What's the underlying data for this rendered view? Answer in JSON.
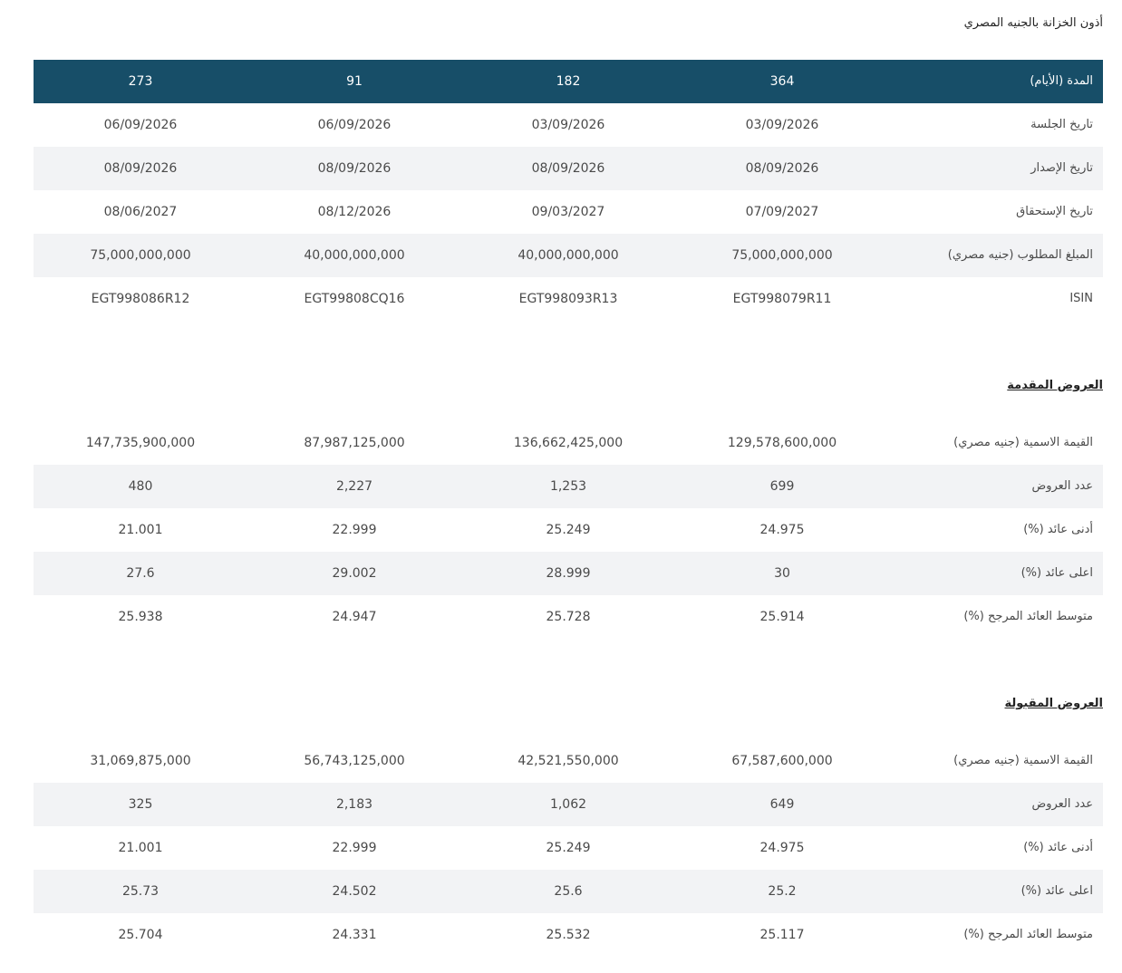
{
  "title": "أذون الخزانة بالجنيه المصري",
  "main_table": {
    "header": [
      "المدة (الأيام)",
      "364",
      "182",
      "91",
      "273"
    ],
    "rows": [
      [
        "تاريخ الجلسة",
        "03/09/2026",
        "03/09/2026",
        "06/09/2026",
        "06/09/2026"
      ],
      [
        "تاريخ الإصدار",
        "08/09/2026",
        "08/09/2026",
        "08/09/2026",
        "08/09/2026"
      ],
      [
        "تاريخ الإستحقاق",
        "07/09/2027",
        "09/03/2027",
        "08/12/2026",
        "08/06/2027"
      ],
      [
        "المبلغ المطلوب (جنيه مصري)",
        "75,000,000,000",
        "40,000,000,000",
        "40,000,000,000",
        "75,000,000,000"
      ],
      [
        "ISIN",
        "EGT998079R11",
        "EGT998093R13",
        "EGT99808CQ16",
        "EGT998086R12"
      ]
    ]
  },
  "offered": {
    "title": "العروض المقدمة",
    "rows": [
      [
        "القيمة الاسمية (جنيه مصري)",
        "129,578,600,000",
        "136,662,425,000",
        "87,987,125,000",
        "147,735,900,000"
      ],
      [
        "عدد العروض",
        "699",
        "1,253",
        "2,227",
        "480"
      ],
      [
        "أدنى عائد (%)",
        "24.975",
        "25.249",
        "22.999",
        "21.001"
      ],
      [
        "اعلى عائد (%)",
        "30",
        "28.999",
        "29.002",
        "27.6"
      ],
      [
        "متوسط العائد المرجح (%)",
        "25.914",
        "25.728",
        "24.947",
        "25.938"
      ]
    ]
  },
  "accepted": {
    "title": "العروض المقبولة",
    "rows": [
      [
        "القيمة الاسمية (جنيه مصري)",
        "67,587,600,000",
        "42,521,550,000",
        "56,743,125,000",
        "31,069,875,000"
      ],
      [
        "عدد العروض",
        "649",
        "1,062",
        "2,183",
        "325"
      ],
      [
        "أدنى عائد (%)",
        "24.975",
        "25.249",
        "22.999",
        "21.001"
      ],
      [
        "اعلى عائد (%)",
        "25.2",
        "25.6",
        "24.502",
        "25.73"
      ],
      [
        "متوسط العائد المرجح (%)",
        "25.117",
        "25.532",
        "24.331",
        "25.704"
      ]
    ]
  }
}
